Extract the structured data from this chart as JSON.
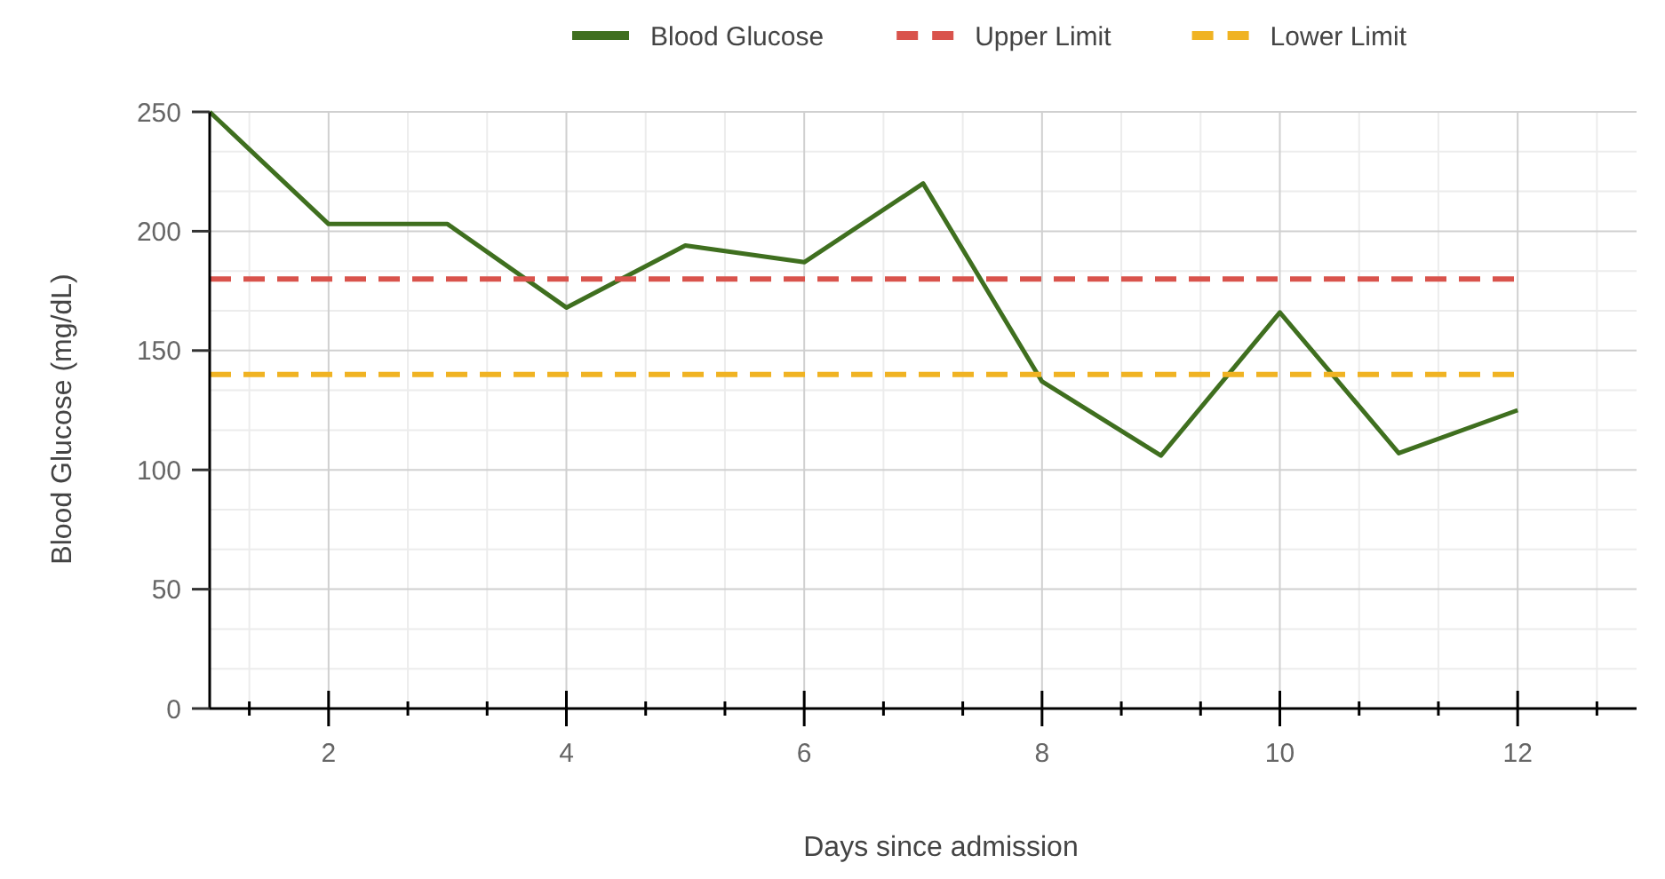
{
  "chart_data": {
    "type": "line",
    "xlabel": "Days since admission",
    "ylabel": "Blood Glucose (mg/dL)",
    "x": [
      1,
      2,
      3,
      4,
      5,
      6,
      7,
      8,
      9,
      10,
      11,
      12
    ],
    "series": [
      {
        "name": "Blood Glucose",
        "color": "#3f6f1f",
        "values": [
          250,
          203,
          203,
          168,
          194,
          187,
          220,
          137,
          106,
          166,
          107,
          125
        ]
      },
      {
        "name": "Upper Limit",
        "color": "#d9534c",
        "type": "line",
        "line_style": "dashed",
        "values": [
          180,
          180,
          180,
          180,
          180,
          180,
          180,
          180,
          180,
          180,
          180,
          180
        ]
      },
      {
        "name": "Lower Limit",
        "color": "#f0b323",
        "type": "line",
        "line_style": "dashed",
        "values": [
          140,
          140,
          140,
          140,
          140,
          140,
          140,
          140,
          140,
          140,
          140,
          140
        ]
      }
    ],
    "xlim": [
      1,
      13
    ],
    "xticks": [
      2,
      4,
      6,
      8,
      10,
      12
    ],
    "ylim": [
      0,
      250
    ],
    "yticks": [
      0,
      50,
      100,
      150,
      200,
      250
    ],
    "grid": true,
    "legend": "top",
    "marker": "none",
    "line_style": "solid"
  }
}
